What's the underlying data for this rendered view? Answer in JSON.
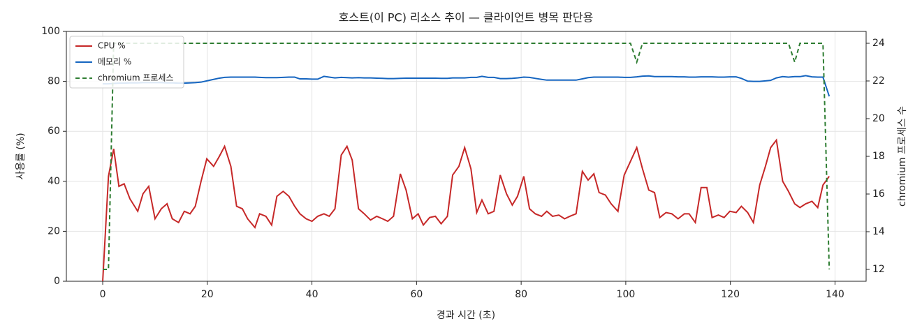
{
  "chart_data": {
    "type": "line",
    "title": "호스트(이 PC) 리소스 추이 — 클라이언트 병목 판단용",
    "xlabel": "경과 시간 (초)",
    "ylabel": "사용률 (%)",
    "y2label": "chromium 프로세스 수",
    "x": [
      0,
      1.1,
      2.1,
      3.1,
      4.1,
      5.2,
      6.7,
      7.7,
      8.8,
      10.0,
      11.2,
      12.3,
      13.3,
      14.5,
      15.6,
      16.7,
      17.7,
      18.8,
      19.9,
      21.2,
      22.3,
      23.3,
      24.5,
      25.6,
      26.7,
      27.7,
      29.1,
      30.0,
      31.2,
      32.3,
      33.3,
      34.5,
      35.6,
      36.7,
      37.7,
      38.9,
      40.0,
      41.1,
      42.3,
      43.3,
      44.4,
      45.6,
      46.7,
      47.7,
      48.9,
      50.0,
      51.2,
      52.4,
      53.5,
      54.5,
      55.6,
      56.9,
      58.0,
      59.2,
      60.3,
      61.3,
      62.5,
      63.6,
      64.7,
      65.9,
      66.9,
      68.1,
      69.2,
      70.4,
      71.5,
      72.5,
      73.7,
      74.8,
      76.0,
      77.2,
      78.3,
      79.3,
      80.5,
      81.6,
      82.7,
      83.9,
      84.9,
      86.0,
      87.2,
      88.3,
      89.3,
      90.5,
      91.7,
      92.8,
      93.9,
      94.9,
      96.1,
      97.2,
      98.5,
      99.7,
      100.9,
      102.1,
      103.2,
      104.4,
      105.5,
      106.5,
      107.7,
      108.8,
      110.0,
      111.2,
      112.1,
      113.3,
      114.4,
      115.5,
      116.5,
      117.7,
      118.8,
      119.9,
      121.1,
      122.1,
      123.3,
      124.4,
      125.6,
      126.7,
      127.7,
      128.8,
      130.0,
      131.1,
      132.3,
      133.3,
      134.4,
      135.6,
      136.7,
      137.7,
      138.9
    ],
    "series": [
      {
        "name": "CPU %",
        "color": "#c62828",
        "linestyle": "solid",
        "values": [
          0,
          42,
          53,
          38,
          39,
          33,
          28,
          35,
          38,
          25,
          29,
          31,
          25,
          23.5,
          28,
          27,
          30,
          40,
          49,
          46,
          50,
          54,
          46,
          30,
          29,
          25,
          21.5,
          27,
          26,
          22.5,
          34,
          36,
          34,
          30,
          27,
          25,
          24,
          26,
          27,
          26,
          29,
          50.5,
          54,
          48.5,
          29,
          27,
          24.5,
          26,
          25,
          24,
          26,
          43,
          36.5,
          25,
          27,
          22.5,
          25.5,
          26,
          23,
          26,
          42.5,
          46,
          53.5,
          45,
          27.5,
          32.5,
          27,
          28,
          42.5,
          35,
          30.5,
          34,
          42,
          29,
          27,
          26,
          28,
          26,
          26.5,
          25,
          26,
          27,
          44,
          40.5,
          43,
          35.5,
          34.5,
          31,
          28,
          42.5,
          48,
          53.5,
          45,
          36.5,
          35.5,
          25.5,
          27.5,
          27,
          25,
          27,
          27,
          23.5,
          37.5,
          37.5,
          25.5,
          26.5,
          25.5,
          28,
          27.5,
          30,
          27.5,
          23.5,
          38.5,
          46,
          53.5,
          56.5,
          40,
          36,
          31,
          29.5,
          31,
          32,
          29.5,
          38.5,
          42
        ]
      },
      {
        "name": "메모리 %",
        "color": "#1565c0",
        "linestyle": "solid",
        "values": [
          79,
          79,
          79.2,
          79.3,
          79.3,
          79.4,
          79.4,
          79.5,
          79.5,
          79.5,
          79.5,
          79.4,
          79.4,
          79.3,
          79.3,
          79.4,
          79.5,
          79.7,
          80.2,
          80.8,
          81.3,
          81.6,
          81.7,
          81.7,
          81.7,
          81.7,
          81.7,
          81.6,
          81.5,
          81.5,
          81.5,
          81.6,
          81.7,
          81.7,
          81.0,
          81.0,
          80.9,
          80.9,
          82.0,
          81.7,
          81.4,
          81.6,
          81.5,
          81.4,
          81.5,
          81.4,
          81.4,
          81.3,
          81.2,
          81.1,
          81.1,
          81.2,
          81.3,
          81.3,
          81.3,
          81.3,
          81.3,
          81.3,
          81.2,
          81.2,
          81.4,
          81.4,
          81.4,
          81.6,
          81.6,
          82.0,
          81.6,
          81.6,
          81.1,
          81.1,
          81.2,
          81.4,
          81.7,
          81.6,
          81.2,
          80.8,
          80.5,
          80.5,
          80.5,
          80.5,
          80.5,
          80.5,
          81.0,
          81.5,
          81.7,
          81.7,
          81.7,
          81.7,
          81.7,
          81.6,
          81.6,
          81.8,
          82.1,
          82.2,
          81.9,
          81.9,
          81.9,
          81.9,
          81.8,
          81.8,
          81.7,
          81.7,
          81.8,
          81.8,
          81.8,
          81.7,
          81.7,
          81.8,
          81.8,
          81.2,
          80.1,
          80.0,
          80.0,
          80.2,
          80.4,
          81.4,
          81.9,
          81.7,
          81.9,
          81.9,
          82.3,
          81.8,
          81.7,
          81.7,
          74
        ]
      },
      {
        "name": "chromium 프로세스",
        "color": "#2e7d32",
        "linestyle": "dashed",
        "axis": "y2",
        "values": [
          12,
          12,
          24,
          24,
          24,
          24,
          24,
          24,
          24,
          24,
          24,
          24,
          24,
          24,
          24,
          24,
          24,
          24,
          24,
          24,
          24,
          24,
          24,
          24,
          24,
          24,
          24,
          24,
          24,
          24,
          24,
          24,
          24,
          24,
          24,
          24,
          24,
          24,
          24,
          24,
          24,
          24,
          24,
          24,
          24,
          24,
          24,
          24,
          24,
          24,
          24,
          24,
          24,
          24,
          24,
          24,
          24,
          24,
          24,
          24,
          24,
          24,
          24,
          24,
          24,
          24,
          24,
          24,
          24,
          24,
          24,
          24,
          24,
          24,
          24,
          24,
          24,
          24,
          24,
          24,
          24,
          24,
          24,
          24,
          24,
          24,
          24,
          24,
          24,
          24,
          24,
          23,
          24,
          24,
          24,
          24,
          24,
          24,
          24,
          24,
          24,
          24,
          24,
          24,
          24,
          24,
          24,
          24,
          24,
          24,
          24,
          24,
          24,
          24,
          24,
          24,
          24,
          24,
          23,
          24,
          24,
          24,
          24,
          24,
          12
        ]
      }
    ],
    "xlim": [
      -6.95,
      145.95
    ],
    "xticks": [
      0,
      20,
      40,
      60,
      80,
      100,
      120,
      140
    ],
    "ylim": [
      0,
      100
    ],
    "yticks": [
      0,
      20,
      40,
      60,
      80,
      100
    ],
    "y2lim": [
      11.37,
      24.63
    ],
    "y2ticks": [
      12,
      14,
      16,
      18,
      20,
      22,
      24
    ],
    "grid": true,
    "legend": "upper left"
  }
}
